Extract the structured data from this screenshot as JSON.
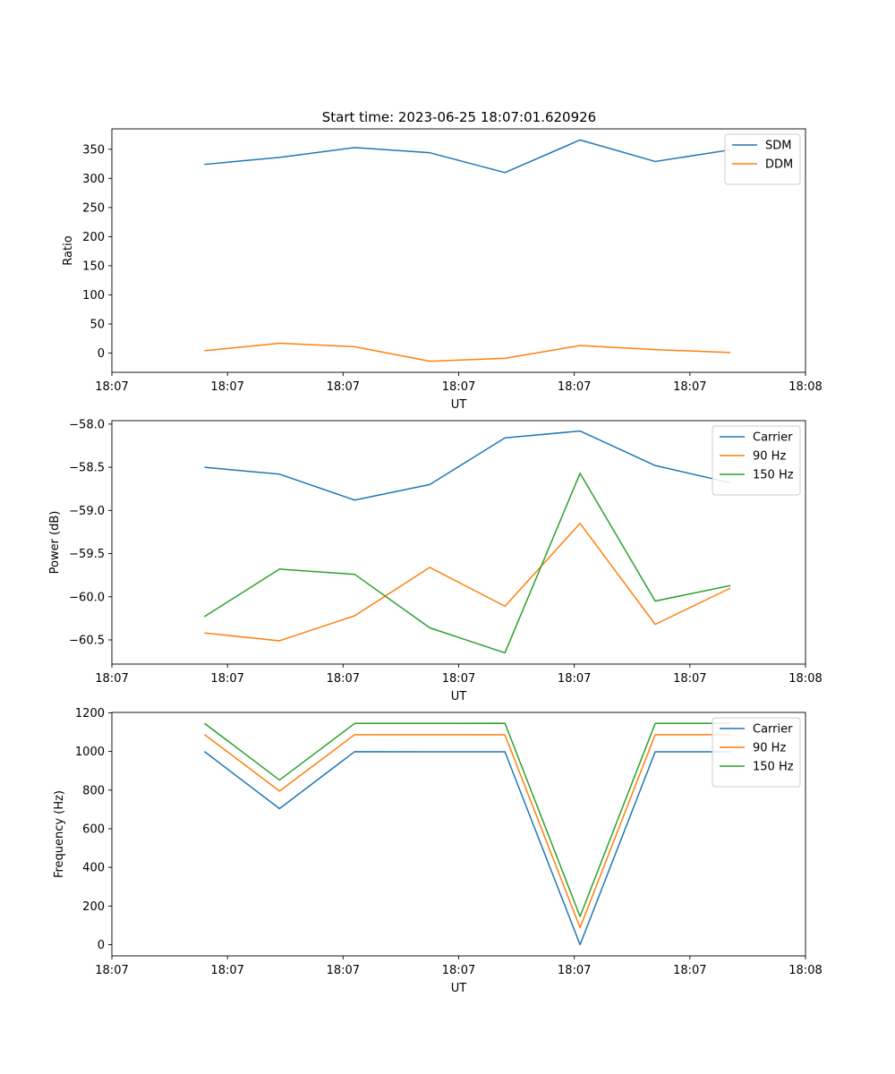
{
  "figure_title": "Start time: 2023-06-25 18:07:01.620926",
  "colors": {
    "blue": "#1f77b4",
    "orange": "#ff7f0e",
    "green": "#2ca02c"
  },
  "chart_data": [
    {
      "type": "line",
      "id": "ratio",
      "title": "Start time: 2023-06-25 18:07:01.620926",
      "xlabel": "UT",
      "ylabel": "Ratio",
      "x": [
        0.8,
        1.45,
        2.1,
        2.75,
        3.4,
        4.05,
        4.7,
        5.35
      ],
      "xlim": [
        0.0,
        6.0
      ],
      "xticks": [
        0,
        1,
        2,
        3,
        4,
        5,
        6
      ],
      "xtick_labels": [
        "18:07",
        "18:07",
        "18:07",
        "18:07",
        "18:07",
        "18:07",
        "18:08"
      ],
      "ylim": [
        -33,
        385
      ],
      "yticks": [
        0,
        50,
        100,
        150,
        200,
        250,
        300,
        350
      ],
      "ytick_labels": [
        "0",
        "50",
        "100",
        "150",
        "200",
        "250",
        "300",
        "350"
      ],
      "legend_position": "top-right",
      "series": [
        {
          "name": "SDM",
          "color": "#1f77b4",
          "values": [
            324,
            336,
            353,
            344,
            310,
            366,
            329,
            349
          ]
        },
        {
          "name": "DDM",
          "color": "#ff7f0e",
          "values": [
            4,
            17,
            11,
            -14,
            -9,
            13,
            6,
            1
          ]
        }
      ]
    },
    {
      "type": "line",
      "id": "power",
      "title": "",
      "xlabel": "UT",
      "ylabel": "Power (dB)",
      "x": [
        0.8,
        1.45,
        2.1,
        2.75,
        3.4,
        4.05,
        4.7,
        5.35
      ],
      "xlim": [
        0.0,
        6.0
      ],
      "xticks": [
        0,
        1,
        2,
        3,
        4,
        5,
        6
      ],
      "xtick_labels": [
        "18:07",
        "18:07",
        "18:07",
        "18:07",
        "18:07",
        "18:07",
        "18:08"
      ],
      "ylim": [
        -60.78,
        -57.96
      ],
      "yticks": [
        -60.5,
        -60.0,
        -59.5,
        -59.0,
        -58.5,
        -58.0
      ],
      "ytick_labels": [
        "−60.5",
        "−60.0",
        "−59.5",
        "−59.0",
        "−58.5",
        "−58.0"
      ],
      "legend_position": "top-right",
      "series": [
        {
          "name": "Carrier",
          "color": "#1f77b4",
          "values": [
            -58.5,
            -58.58,
            -58.88,
            -58.7,
            -58.16,
            -58.08,
            -58.48,
            -58.68
          ]
        },
        {
          "name": "90 Hz",
          "color": "#ff7f0e",
          "values": [
            -60.42,
            -60.51,
            -60.22,
            -59.66,
            -60.11,
            -59.15,
            -60.32,
            -59.9
          ]
        },
        {
          "name": "150 Hz",
          "color": "#2ca02c",
          "values": [
            -60.23,
            -59.68,
            -59.74,
            -60.36,
            -60.65,
            -58.57,
            -60.05,
            -59.87
          ]
        }
      ]
    },
    {
      "type": "line",
      "id": "frequency",
      "title": "",
      "xlabel": "UT",
      "ylabel": "Frequency (Hz)",
      "x": [
        0.8,
        1.45,
        2.1,
        2.75,
        3.4,
        4.05,
        4.7,
        5.35
      ],
      "xlim": [
        0.0,
        6.0
      ],
      "xticks": [
        0,
        1,
        2,
        3,
        4,
        5,
        6
      ],
      "xtick_labels": [
        "18:07",
        "18:07",
        "18:07",
        "18:07",
        "18:07",
        "18:07",
        "18:08"
      ],
      "ylim": [
        -58,
        1202
      ],
      "yticks": [
        0,
        200,
        400,
        600,
        800,
        1000,
        1200
      ],
      "ytick_labels": [
        "0",
        "200",
        "400",
        "600",
        "800",
        "1000",
        "1200"
      ],
      "legend_position": "top-right",
      "series": [
        {
          "name": "Carrier",
          "color": "#1f77b4",
          "values": [
            1000,
            704,
            999,
            998,
            998,
            0,
            998,
            998
          ]
        },
        {
          "name": "90 Hz",
          "color": "#ff7f0e",
          "values": [
            1088,
            795,
            1087,
            1087,
            1086,
            88,
            1087,
            1087
          ]
        },
        {
          "name": "150 Hz",
          "color": "#2ca02c",
          "values": [
            1146,
            852,
            1145,
            1145,
            1146,
            146,
            1145,
            1146
          ]
        }
      ]
    }
  ]
}
